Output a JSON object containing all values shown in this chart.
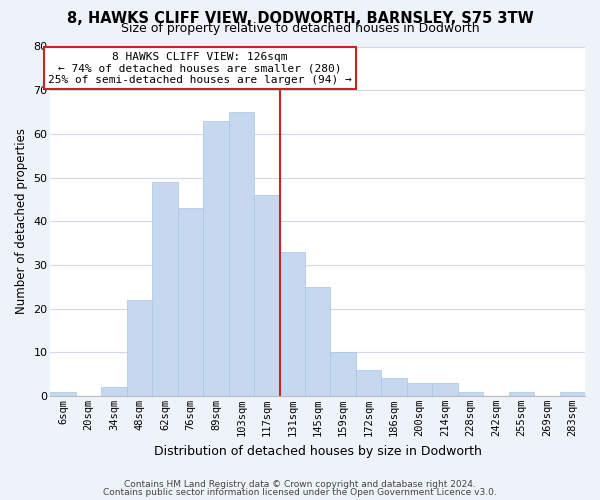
{
  "title1": "8, HAWKS CLIFF VIEW, DODWORTH, BARNSLEY, S75 3TW",
  "title2": "Size of property relative to detached houses in Dodworth",
  "xlabel": "Distribution of detached houses by size in Dodworth",
  "ylabel": "Number of detached properties",
  "bin_labels": [
    "6sqm",
    "20sqm",
    "34sqm",
    "48sqm",
    "62sqm",
    "76sqm",
    "89sqm",
    "103sqm",
    "117sqm",
    "131sqm",
    "145sqm",
    "159sqm",
    "172sqm",
    "186sqm",
    "200sqm",
    "214sqm",
    "228sqm",
    "242sqm",
    "255sqm",
    "269sqm",
    "283sqm"
  ],
  "bar_heights": [
    1,
    0,
    2,
    22,
    49,
    43,
    63,
    65,
    46,
    33,
    25,
    10,
    6,
    4,
    3,
    3,
    1,
    0,
    1,
    0,
    1
  ],
  "bar_color_default": "#c5d8f0",
  "bar_edge_color": "#a8c4e8",
  "annotation_title": "8 HAWKS CLIFF VIEW: 126sqm",
  "annotation_line1": "← 74% of detached houses are smaller (280)",
  "annotation_line2": "25% of semi-detached houses are larger (94) →",
  "ylim": [
    0,
    80
  ],
  "yticks": [
    0,
    10,
    20,
    30,
    40,
    50,
    60,
    70,
    80
  ],
  "vline_index": 8,
  "footer1": "Contains HM Land Registry data © Crown copyright and database right 2024.",
  "footer2": "Contains public sector information licensed under the Open Government Licence v3.0.",
  "bg_color": "#eef2f9",
  "plot_bg_color": "#ffffff",
  "grid_color": "#d0d8ea",
  "vline_color": "#cc2222",
  "annotation_border_color": "#cc2222",
  "title1_fontsize": 10.5,
  "title2_fontsize": 9,
  "ylabel_fontsize": 8.5,
  "xlabel_fontsize": 9,
  "tick_fontsize": 7.5,
  "annotation_fontsize": 8,
  "footer_fontsize": 6.5
}
